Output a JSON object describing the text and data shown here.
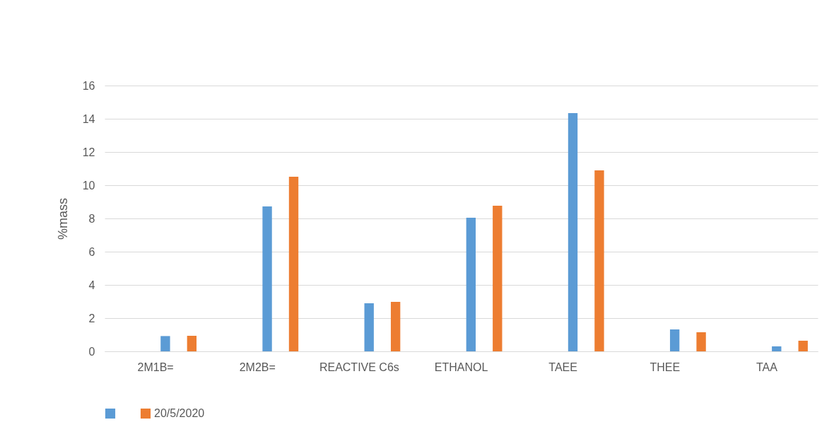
{
  "chart_data": {
    "type": "bar",
    "ylabel": "%mass",
    "categories": [
      "2M1B=",
      "2M2B=",
      "REACTIVE C6s",
      "ETHANOL",
      "TAEE",
      "THEE",
      "TAA"
    ],
    "series": [
      {
        "color": "#5b9bd5",
        "values": [
          0.92,
          8.72,
          2.89,
          8.04,
          14.34,
          1.32,
          0.3
        ]
      },
      {
        "name": "20/5/2020",
        "color": "#ed7d31",
        "values": [
          0.94,
          10.51,
          2.98,
          8.77,
          10.89,
          1.15,
          0.64
        ]
      }
    ],
    "ylim": [
      0,
      16
    ],
    "yticks": [
      0,
      2,
      4,
      6,
      8,
      10,
      12,
      14,
      16
    ],
    "grid": "y",
    "legend": "bottom"
  }
}
